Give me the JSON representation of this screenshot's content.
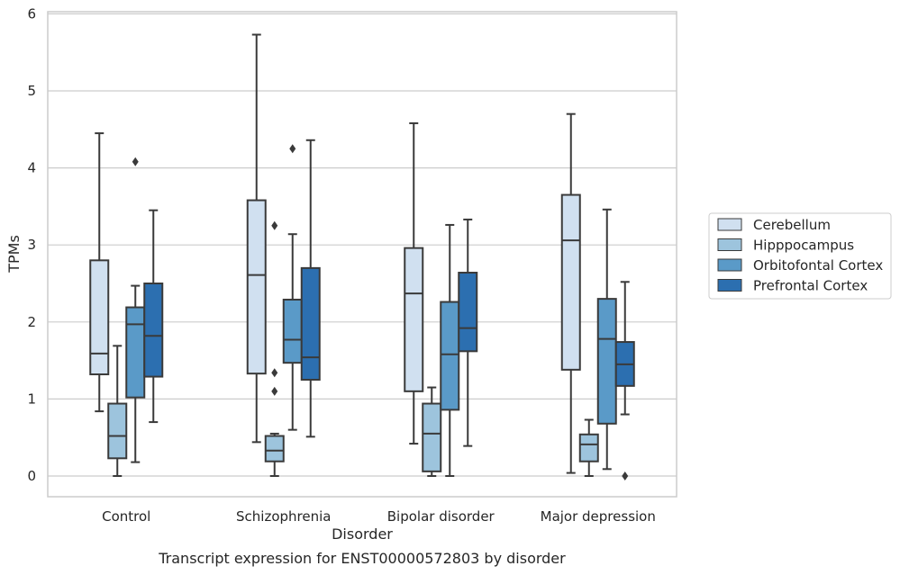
{
  "chart_data": {
    "type": "box",
    "caption": "Transcript expression for ENST00000572803 by disorder",
    "xlabel": "Disorder",
    "ylabel": "TPMs",
    "ylim": [
      -0.28,
      6.0
    ],
    "yticks": [
      0,
      1,
      2,
      3,
      4,
      5,
      6
    ],
    "categories": [
      "Control",
      "Schizophrenia",
      "Bipolar disorder",
      "Major depression"
    ],
    "grid": true,
    "legend_position": "right",
    "series": [
      {
        "name": "Cerebellum",
        "color": "#d0e0f0",
        "boxes": [
          {
            "whislo": 0.84,
            "q1": 1.32,
            "med": 1.59,
            "q3": 2.8,
            "whishi": 4.45,
            "fliers": []
          },
          {
            "whislo": 0.44,
            "q1": 1.33,
            "med": 2.61,
            "q3": 3.58,
            "whishi": 5.73,
            "fliers": []
          },
          {
            "whislo": 0.42,
            "q1": 1.1,
            "med": 2.37,
            "q3": 2.96,
            "whishi": 4.58,
            "fliers": []
          },
          {
            "whislo": 0.04,
            "q1": 1.38,
            "med": 3.06,
            "q3": 3.65,
            "whishi": 4.7,
            "fliers": []
          }
        ]
      },
      {
        "name": "Hipppocampus",
        "color": "#9dc4dd",
        "boxes": [
          {
            "whislo": 0.0,
            "q1": 0.23,
            "med": 0.52,
            "q3": 0.94,
            "whishi": 1.69,
            "fliers": []
          },
          {
            "whislo": 0.0,
            "q1": 0.19,
            "med": 0.33,
            "q3": 0.52,
            "whishi": 0.55,
            "fliers": [
              1.1,
              1.34,
              3.25
            ]
          },
          {
            "whislo": 0.0,
            "q1": 0.06,
            "med": 0.55,
            "q3": 0.94,
            "whishi": 1.15,
            "fliers": []
          },
          {
            "whislo": 0.0,
            "q1": 0.19,
            "med": 0.41,
            "q3": 0.54,
            "whishi": 0.73,
            "fliers": []
          }
        ]
      },
      {
        "name": "Orbitofontal Cortex",
        "color": "#5a9ac8",
        "boxes": [
          {
            "whislo": 0.18,
            "q1": 1.02,
            "med": 1.97,
            "q3": 2.19,
            "whishi": 2.47,
            "fliers": [
              4.08
            ]
          },
          {
            "whislo": 0.6,
            "q1": 1.47,
            "med": 1.77,
            "q3": 2.29,
            "whishi": 3.14,
            "fliers": [
              4.25
            ]
          },
          {
            "whislo": 0.0,
            "q1": 0.86,
            "med": 1.58,
            "q3": 2.26,
            "whishi": 3.26,
            "fliers": []
          },
          {
            "whislo": 0.09,
            "q1": 0.68,
            "med": 1.78,
            "q3": 2.3,
            "whishi": 3.46,
            "fliers": []
          }
        ]
      },
      {
        "name": "Prefrontal Cortex",
        "color": "#2c6fb0",
        "boxes": [
          {
            "whislo": 0.7,
            "q1": 1.29,
            "med": 1.82,
            "q3": 2.5,
            "whishi": 3.45,
            "fliers": []
          },
          {
            "whislo": 0.51,
            "q1": 1.25,
            "med": 1.54,
            "q3": 2.7,
            "whishi": 4.36,
            "fliers": []
          },
          {
            "whislo": 0.39,
            "q1": 1.62,
            "med": 1.92,
            "q3": 2.64,
            "whishi": 3.33,
            "fliers": []
          },
          {
            "whislo": 0.8,
            "q1": 1.17,
            "med": 1.45,
            "q3": 1.74,
            "whishi": 2.52,
            "fliers": [
              0.0
            ]
          }
        ]
      }
    ]
  }
}
